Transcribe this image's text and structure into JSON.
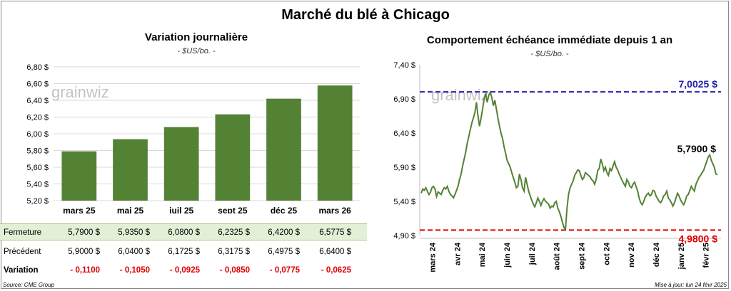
{
  "title": "Marché du blé à Chicago",
  "left_chart": {
    "subtitle": "Variation journalière",
    "unit": "- $US/bo. -",
    "watermark": "grainwiz"
  },
  "right_chart": {
    "subtitle": "Comportement échéance immédiate depuis 1 an",
    "unit": "- $US/bo. -",
    "watermark": "grainwiz",
    "high_label": "7,0025 $",
    "low_label": "4,9800 $",
    "last_label": "5,7900 $"
  },
  "table": {
    "rows": [
      {
        "label": "Fermeture",
        "values": [
          "5,7900 $",
          "5,9350 $",
          "6,0800 $",
          "6,2325 $",
          "6,4200 $",
          "6,5775 $"
        ]
      },
      {
        "label": "Précédent",
        "values": [
          "5,9000 $",
          "6,0400 $",
          "6,1725 $",
          "6,3175 $",
          "6,4975 $",
          "6,6400 $"
        ]
      },
      {
        "label": "Variation",
        "values": [
          "- 0,1100",
          "- 0,1050",
          "- 0,0925",
          "- 0,0850",
          "- 0,0775",
          "- 0,0625"
        ]
      }
    ]
  },
  "footer": {
    "source": "Source: CME Group",
    "updated": "Mise à jour: lun 24 févr 2025"
  },
  "colors": {
    "bar": "#548235",
    "line": "#548235",
    "high": "#1f1fa8",
    "low": "#e00000"
  },
  "chart_data": [
    {
      "type": "bar",
      "title": "Variation journalière",
      "ylabel": "$US/bo.",
      "categories": [
        "mars 25",
        "mai 25",
        "juil 25",
        "sept 25",
        "déc 25",
        "mars 26"
      ],
      "values": [
        5.79,
        5.935,
        6.08,
        6.2325,
        6.42,
        6.5775
      ],
      "ylim": [
        5.2,
        6.8
      ],
      "yticks": [
        "5,20 $",
        "5,40 $",
        "5,60 $",
        "5,80 $",
        "6,00 $",
        "6,20 $",
        "6,40 $",
        "6,60 $",
        "6,80 $"
      ],
      "ytick_values": [
        5.2,
        5.4,
        5.6,
        5.8,
        6.0,
        6.2,
        6.4,
        6.6,
        6.8
      ],
      "grid": true
    },
    {
      "type": "line",
      "title": "Comportement échéance immédiate depuis 1 an",
      "ylabel": "$US/bo.",
      "ylim": [
        4.9,
        7.4
      ],
      "yticks": [
        "4,90 $",
        "5,40 $",
        "5,90 $",
        "6,40 $",
        "6,90 $",
        "7,40 $"
      ],
      "ytick_values": [
        4.9,
        5.4,
        5.9,
        6.4,
        6.9,
        7.4
      ],
      "xticks": [
        "mars 24",
        "avr 24",
        "mai 24",
        "juin 24",
        "juil 24",
        "août 24",
        "sept 24",
        "oct 24",
        "nov 24",
        "déc 24",
        "janv 25",
        "févr 25"
      ],
      "reference_lines": [
        7.0025,
        4.98
      ],
      "grid": false,
      "series": [
        {
          "values": [
            5.52,
            5.58,
            5.56,
            5.6,
            5.55,
            5.5,
            5.53,
            5.6,
            5.62,
            5.58,
            5.47,
            5.54,
            5.52,
            5.5,
            5.56,
            5.6,
            5.58,
            5.62,
            5.55,
            5.5,
            5.48,
            5.45,
            5.5,
            5.56,
            5.62,
            5.72,
            5.8,
            5.92,
            6.02,
            6.12,
            6.25,
            6.35,
            6.45,
            6.55,
            6.62,
            6.7,
            6.85,
            6.65,
            6.5,
            6.62,
            6.75,
            6.9,
            6.98,
            6.85,
            6.95,
            7.0,
            6.92,
            6.8,
            6.88,
            6.75,
            6.62,
            6.5,
            6.4,
            6.32,
            6.2,
            6.1,
            6.0,
            5.95,
            5.9,
            5.82,
            5.75,
            5.68,
            5.6,
            5.62,
            5.8,
            5.72,
            5.6,
            5.55,
            5.75,
            5.65,
            5.55,
            5.48,
            5.42,
            5.36,
            5.32,
            5.38,
            5.45,
            5.4,
            5.34,
            5.4,
            5.44,
            5.4,
            5.38,
            5.36,
            5.3,
            5.33,
            5.32,
            5.38,
            5.4,
            5.3,
            5.25,
            5.18,
            5.1,
            5.02,
            4.99,
            5.3,
            5.5,
            5.6,
            5.65,
            5.7,
            5.78,
            5.82,
            5.86,
            5.85,
            5.78,
            5.72,
            5.75,
            5.82,
            5.8,
            5.78,
            5.76,
            5.72,
            5.7,
            5.65,
            5.72,
            5.85,
            5.88,
            6.02,
            5.95,
            5.85,
            5.9,
            5.82,
            5.78,
            5.88,
            5.85,
            5.92,
            5.98,
            5.9,
            5.86,
            5.8,
            5.75,
            5.7,
            5.66,
            5.62,
            5.72,
            5.68,
            5.62,
            5.6,
            5.65,
            5.68,
            5.62,
            5.55,
            5.45,
            5.38,
            5.35,
            5.4,
            5.46,
            5.5,
            5.52,
            5.48,
            5.5,
            5.56,
            5.55,
            5.48,
            5.44,
            5.4,
            5.38,
            5.42,
            5.48,
            5.5,
            5.55,
            5.45,
            5.42,
            5.38,
            5.33,
            5.38,
            5.45,
            5.52,
            5.48,
            5.42,
            5.38,
            5.35,
            5.4,
            5.48,
            5.5,
            5.56,
            5.62,
            5.58,
            5.55,
            5.65,
            5.7,
            5.75,
            5.78,
            5.82,
            5.85,
            5.92,
            5.98,
            6.05,
            6.08,
            6.0,
            5.95,
            5.9,
            5.8,
            5.79
          ]
        }
      ]
    }
  ]
}
